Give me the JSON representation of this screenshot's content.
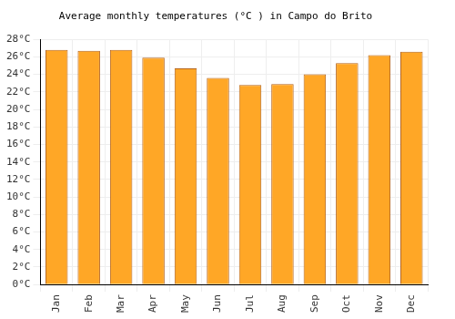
{
  "chart_data": {
    "type": "bar",
    "title": "Average monthly temperatures (°C ) in Campo do Brito",
    "categories": [
      "Jan",
      "Feb",
      "Mar",
      "Apr",
      "May",
      "Jun",
      "Jul",
      "Aug",
      "Sep",
      "Oct",
      "Nov",
      "Dec"
    ],
    "values": [
      26.8,
      26.7,
      26.8,
      25.9,
      24.7,
      23.6,
      22.8,
      22.9,
      24.0,
      25.3,
      26.2,
      26.6
    ],
    "color": "#ffa726",
    "ylim": [
      0,
      28
    ],
    "yticks": [
      {
        "value": 0,
        "label": "0°C"
      },
      {
        "value": 2,
        "label": "2°C"
      },
      {
        "value": 4,
        "label": "4°C"
      },
      {
        "value": 6,
        "label": "6°C"
      },
      {
        "value": 8,
        "label": "8°C"
      },
      {
        "value": 10,
        "label": "10°C"
      },
      {
        "value": 12,
        "label": "12°C"
      },
      {
        "value": 14,
        "label": "14°C"
      },
      {
        "value": 16,
        "label": "16°C"
      },
      {
        "value": 18,
        "label": "18°C"
      },
      {
        "value": 20,
        "label": "20°C"
      },
      {
        "value": 22,
        "label": "22°C"
      },
      {
        "value": 24,
        "label": "24°C"
      },
      {
        "value": 26,
        "label": "26°C"
      },
      {
        "value": 28,
        "label": "28°C"
      }
    ],
    "grid": true
  }
}
